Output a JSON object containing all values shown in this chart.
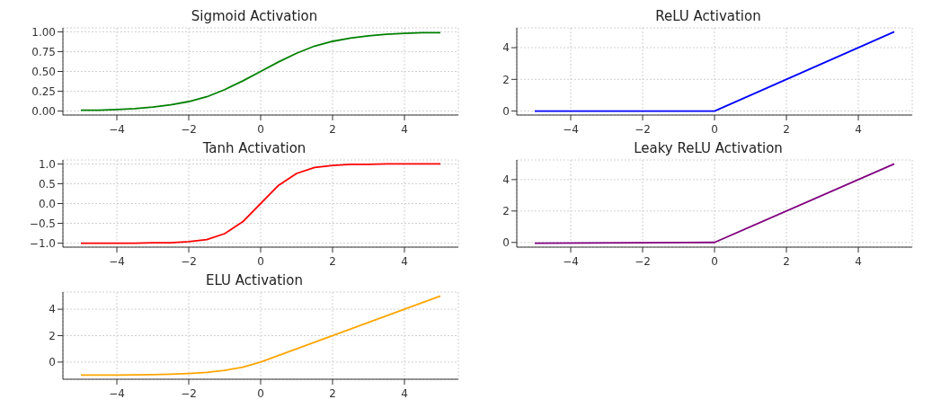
{
  "chart_data": [
    {
      "type": "line",
      "title": "Sigmoid Activation",
      "x": [
        -5,
        -4.5,
        -4,
        -3.5,
        -3,
        -2.5,
        -2,
        -1.5,
        -1,
        -0.5,
        0,
        0.5,
        1,
        1.5,
        2,
        2.5,
        3,
        3.5,
        4,
        4.5,
        5
      ],
      "series": [
        {
          "color": "#008000",
          "values": [
            0.01,
            0.01,
            0.02,
            0.03,
            0.05,
            0.08,
            0.12,
            0.18,
            0.27,
            0.38,
            0.5,
            0.62,
            0.73,
            0.82,
            0.88,
            0.92,
            0.95,
            0.97,
            0.98,
            0.99,
            0.99
          ]
        }
      ],
      "xlim": [
        -5.5,
        5.5
      ],
      "xticks": [
        -4,
        -2,
        0,
        2,
        4
      ],
      "ylim": [
        -0.05,
        1.05
      ],
      "yticks": [
        {
          "value": 0,
          "label": "0.00"
        },
        0.25,
        {
          "value": 0.5,
          "label": "0.50"
        },
        0.75,
        {
          "value": 1,
          "label": "1.00"
        }
      ],
      "grid": true,
      "marker": "none",
      "line_style": "solid"
    },
    {
      "type": "line",
      "title": "ReLU Activation",
      "x": [
        -5,
        0,
        5
      ],
      "series": [
        {
          "color": "#0000ff",
          "values": [
            0,
            0,
            5
          ]
        }
      ],
      "xlim": [
        -5.5,
        5.5
      ],
      "xticks": [
        -4,
        -2,
        0,
        2,
        4
      ],
      "ylim": [
        -0.25,
        5.25
      ],
      "yticks": [
        0,
        2,
        4
      ],
      "grid": true,
      "marker": "none",
      "line_style": "solid"
    },
    {
      "type": "line",
      "title": "Tanh Activation",
      "x": [
        -5,
        -4.5,
        -4,
        -3.5,
        -3,
        -2.5,
        -2,
        -1.5,
        -1,
        -0.5,
        0,
        0.5,
        1,
        1.5,
        2,
        2.5,
        3,
        3.5,
        4,
        4.5,
        5
      ],
      "series": [
        {
          "color": "#ff0000",
          "values": [
            -1,
            -1,
            -1,
            -1,
            -0.99,
            -0.99,
            -0.96,
            -0.91,
            -0.76,
            -0.46,
            0,
            0.46,
            0.76,
            0.91,
            0.96,
            0.99,
            0.99,
            1,
            1,
            1,
            1
          ]
        }
      ],
      "xlim": [
        -5.5,
        5.5
      ],
      "xticks": [
        -4,
        -2,
        0,
        2,
        4
      ],
      "ylim": [
        -1.1,
        1.1
      ],
      "yticks": [
        {
          "value": -1,
          "label": "−1.0"
        },
        {
          "value": -0.5,
          "label": "−0.5"
        },
        {
          "value": 0,
          "label": "0.0"
        },
        0.5,
        {
          "value": 1,
          "label": "1.0"
        }
      ],
      "grid": true,
      "marker": "none",
      "line_style": "solid"
    },
    {
      "type": "line",
      "title": "Leaky ReLU Activation",
      "x": [
        -5,
        0,
        5
      ],
      "series": [
        {
          "color": "#800080",
          "values": [
            -0.05,
            0,
            5
          ]
        }
      ],
      "xlim": [
        -5.5,
        5.5
      ],
      "xticks": [
        -4,
        -2,
        0,
        2,
        4
      ],
      "ylim": [
        -0.3,
        5.25
      ],
      "yticks": [
        0,
        2,
        4
      ],
      "grid": true,
      "marker": "none",
      "line_style": "solid"
    },
    {
      "type": "line",
      "title": "ELU Activation",
      "x": [
        -5,
        -4.5,
        -4,
        -3.5,
        -3,
        -2.5,
        -2,
        -1.5,
        -1,
        -0.5,
        0,
        5
      ],
      "series": [
        {
          "color": "#ffa500",
          "values": [
            -0.99,
            -0.99,
            -0.98,
            -0.97,
            -0.95,
            -0.92,
            -0.86,
            -0.78,
            -0.63,
            -0.39,
            0,
            5
          ]
        }
      ],
      "xlim": [
        -5.5,
        5.5
      ],
      "xticks": [
        -4,
        -2,
        0,
        2,
        4
      ],
      "ylim": [
        -1.3,
        5.3
      ],
      "yticks": [
        0,
        2,
        4
      ],
      "grid": true,
      "marker": "none",
      "line_style": "solid"
    }
  ]
}
